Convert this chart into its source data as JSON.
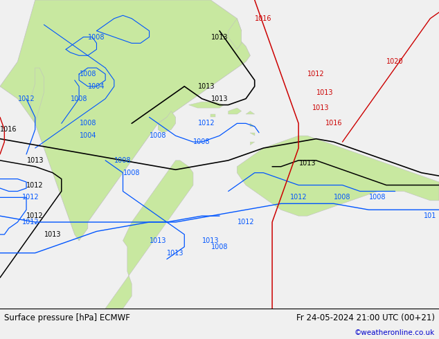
{
  "title_left": "Surface pressure [hPa] ECMWF",
  "title_right": "Fr 24-05-2024 21:00 UTC (00+21)",
  "copyright": "©weatheronline.co.uk",
  "copyright_color": "#0000cc",
  "fig_width": 6.34,
  "fig_height": 4.9,
  "dpi": 100,
  "bg_color": "#f0f0f0",
  "land_green_color": "#c8e8a0",
  "land_gray_color": "#c0c0c0",
  "ocean_color": "#f0f0f0",
  "contour_black_color": "#000000",
  "contour_blue_color": "#0055ff",
  "contour_red_color": "#cc0000",
  "label_fontsize": 7,
  "footer_fontsize": 8.5,
  "footer_bg": "#ffffff"
}
